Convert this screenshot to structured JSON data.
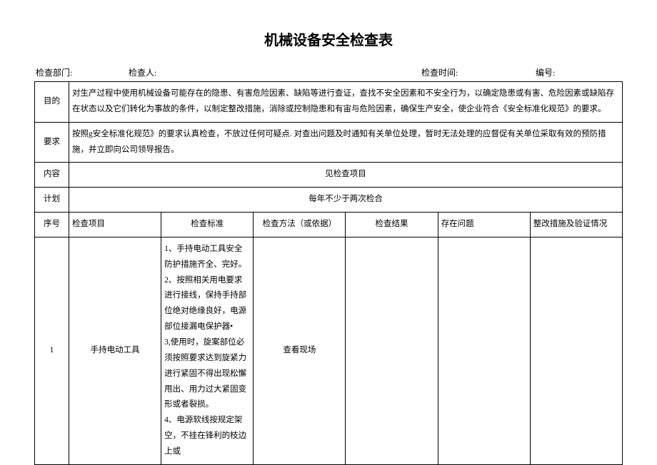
{
  "title": "机械设备安全检查表",
  "header": {
    "field1_label": "检查部门:",
    "field2_label": "检查人:",
    "field3_label": "检查时间:",
    "field4_label": "编号:"
  },
  "meta_rows": {
    "purpose_label": "目的",
    "purpose_text": "对生产过程中使用机械设备可能存在的隐患、有害危险因素、缺陷等进行查证，查找不安全因素和不安全行为，以确定隐患或有害、危险因素或缺陷存在状态以及它们转化为事故的条件，以制定整改措施，消除或控制隐患和有宙与危险因素，确保生产安全，使企业符合《安全标准化规范》的要求。",
    "requirement_label": "要求",
    "requirement_text": "按照g安全标准化规范》的要求认真检查，不放过任何可疑点. 对查出问题及时通知有关单位处理，暂时无法处理的应督促有关单位采取有效的预防措施，并立即向公司领导报告。",
    "content_label": "内容",
    "content_text": "见检查项目",
    "plan_label": "计划",
    "plan_text": "每年不少于两次检合"
  },
  "columns": {
    "seq": "序号",
    "item": "检查项目",
    "standard": "检查标准",
    "method": "检查方法（或依据）",
    "result": "检查结果",
    "problem": "存在问题",
    "rectify": "整改措施及验证情况"
  },
  "rows": [
    {
      "seq": "1",
      "item": "手持电动工具",
      "standard": "1、手持电动工具安全防护措施齐全、完好。\n2、按照相关用电要求进行接线，保持手持部位绝对绝缘良好，电源部位接漏电保护器•\n3,使用时，旋案部位必须按照要求达到旋紧力进行紧固不得出现松懈甩出、用力过大紧固变形或者裂损。\n4、电源软线按规定架空，不挂在锋利的枝边上或",
      "method": "查看现场",
      "result": "",
      "problem": "",
      "rectify": ""
    }
  ],
  "colors": {
    "background": "#ffffff",
    "text": "#000000",
    "border": "#000000"
  },
  "typography": {
    "title_fontsize": 20,
    "body_fontsize": 11.5,
    "header_fontsize": 12,
    "line_height": 1.9
  }
}
